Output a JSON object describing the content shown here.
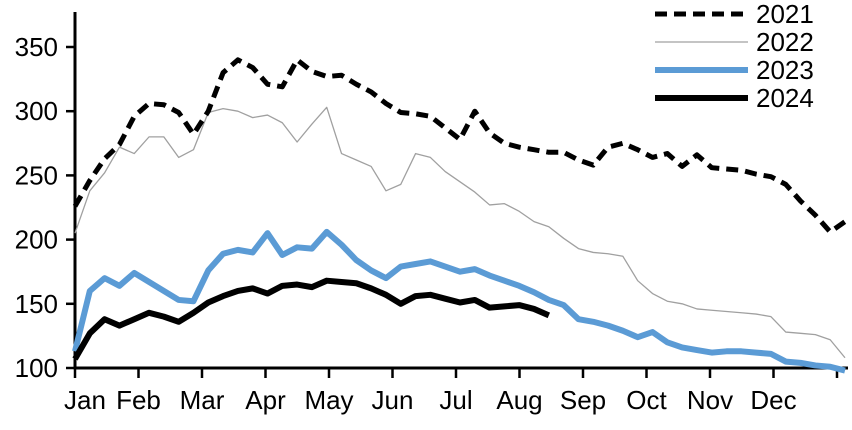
{
  "chart_data": {
    "type": "line",
    "title": "",
    "xlabel": "",
    "ylabel": "",
    "x_unit": "week-of-year (1-53, weekly data)",
    "xtick_labels": [
      "Jan",
      "Feb",
      "Mar",
      "Apr",
      "May",
      "Jun",
      "Jul",
      "Aug",
      "Sep",
      "Oct",
      "Nov",
      "Dec"
    ],
    "yticks": [
      100,
      150,
      200,
      250,
      300,
      350
    ],
    "ylim": [
      100,
      363
    ],
    "grid": false,
    "legend_position": "top-right",
    "axis_color": "#000000",
    "series": [
      {
        "name": "2021",
        "color": "#000000",
        "line_style": "dashed",
        "line_width": 5,
        "values": [
          226,
          246,
          263,
          274,
          296,
          306,
          305,
          299,
          282,
          300,
          330,
          340,
          334,
          321,
          319,
          340,
          331,
          327,
          328,
          321,
          315,
          306,
          299,
          298,
          296,
          287,
          278,
          300,
          283,
          275,
          272,
          270,
          268,
          268,
          262,
          258,
          272,
          275,
          270,
          264,
          267,
          257,
          266,
          256,
          255,
          254,
          251,
          249,
          243,
          230,
          219,
          206,
          214
        ]
      },
      {
        "name": "2022",
        "color": "#a0a0a0",
        "line_style": "solid",
        "line_width": 1.3,
        "values": [
          205,
          238,
          252,
          272,
          267,
          280,
          280,
          264,
          270,
          299,
          302,
          300,
          295,
          297,
          291,
          276,
          290,
          303,
          267,
          262,
          257,
          238,
          243,
          267,
          264,
          253,
          245,
          237,
          227,
          228,
          222,
          214,
          210,
          201,
          193,
          190,
          189,
          187,
          168,
          158,
          152,
          150,
          146,
          145,
          144,
          143,
          142,
          140,
          128,
          127,
          126,
          122,
          108
        ]
      },
      {
        "name": "2023",
        "color": "#5b9bd5",
        "line_style": "solid",
        "line_width": 6,
        "values": [
          113,
          160,
          170,
          164,
          174,
          167,
          160,
          153,
          152,
          176,
          189,
          192,
          190,
          205,
          188,
          194,
          193,
          206,
          196,
          184,
          176,
          170,
          179,
          181,
          183,
          179,
          175,
          177,
          172,
          168,
          164,
          159,
          153,
          149,
          138,
          136,
          133,
          129,
          124,
          128,
          120,
          116,
          114,
          112,
          113,
          113,
          112,
          111,
          105,
          104,
          102,
          101,
          98
        ]
      },
      {
        "name": "2024",
        "color": "#000000",
        "line_style": "solid",
        "line_width": 6,
        "values": [
          107,
          127,
          138,
          133,
          138,
          143,
          140,
          136,
          143,
          151,
          156,
          160,
          162,
          158,
          164,
          165,
          163,
          168,
          167,
          166,
          162,
          157,
          150,
          156,
          157,
          154,
          151,
          153,
          147,
          148,
          149,
          146,
          141
        ]
      }
    ],
    "legend_items": [
      {
        "label": "2021",
        "style": "dashed-black"
      },
      {
        "label": "2022",
        "style": "thin-gray"
      },
      {
        "label": "2023",
        "style": "thick-blue"
      },
      {
        "label": "2024",
        "style": "thick-black"
      }
    ]
  }
}
